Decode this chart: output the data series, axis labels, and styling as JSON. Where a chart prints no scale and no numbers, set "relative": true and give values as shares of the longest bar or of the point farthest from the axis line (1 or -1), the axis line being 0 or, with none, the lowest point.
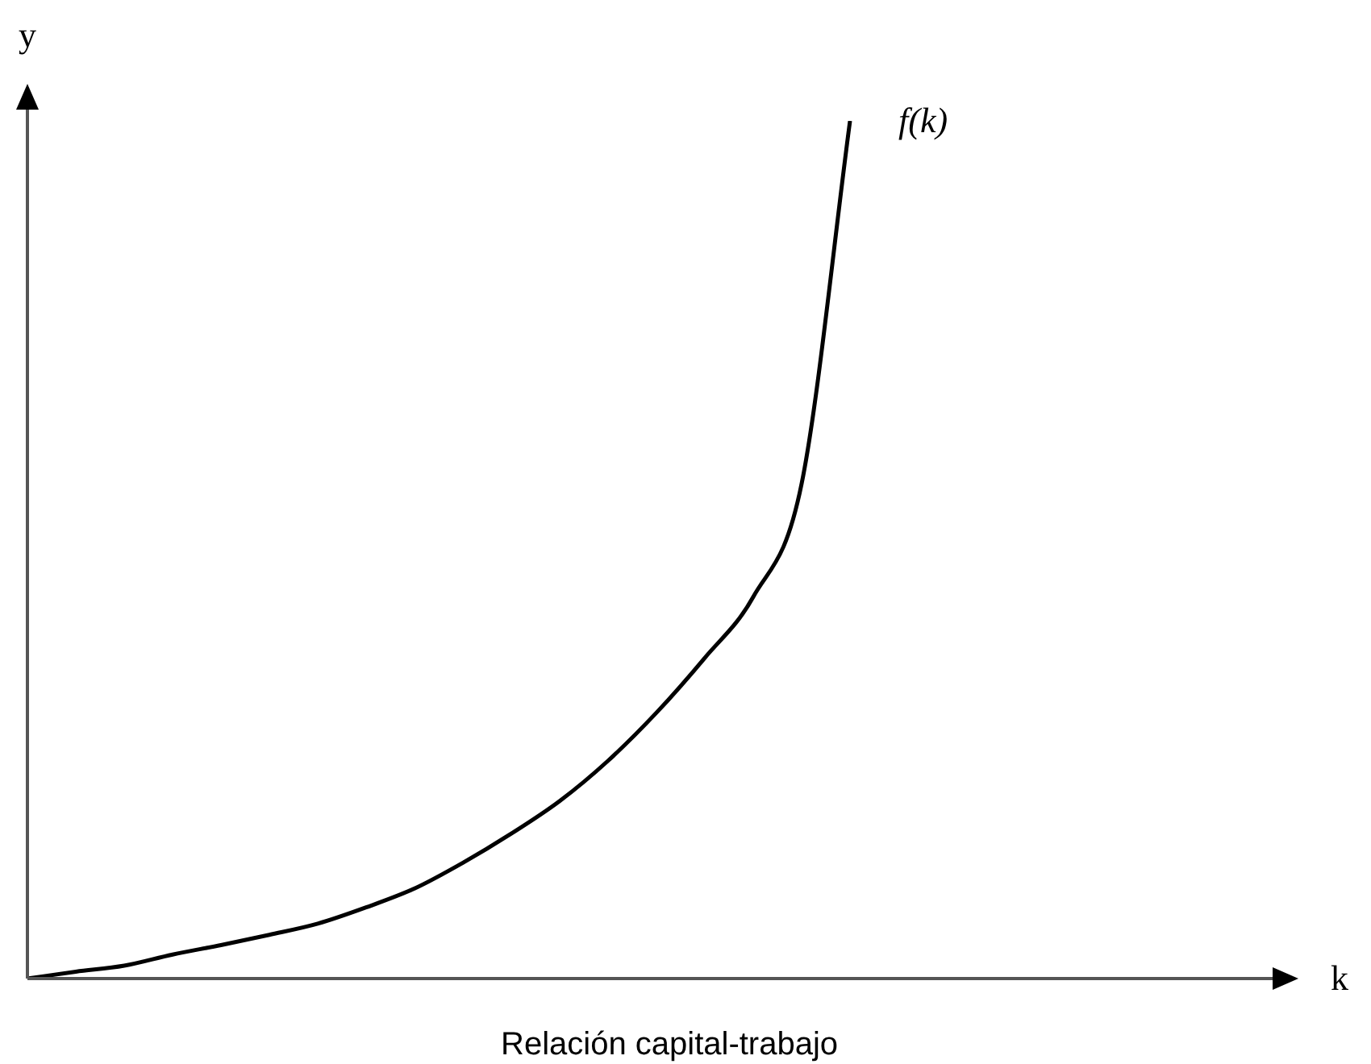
{
  "chart_data": {
    "type": "line",
    "xlabel": "k",
    "ylabel": "y",
    "annotations": [
      "Relación capital-trabajo"
    ],
    "relative": true,
    "categories": [
      null,
      null,
      null,
      null,
      null,
      null,
      null,
      null,
      null,
      null,
      null,
      null,
      null,
      null,
      null,
      null,
      null,
      null,
      null,
      null,
      null,
      null,
      null,
      null,
      null,
      null,
      null
    ],
    "series": [
      {
        "name": "f(k)",
        "color": "#000000",
        "values": [
          0,
          0.008,
          0.015,
          0.028,
          0.039,
          0.051,
          0.064,
          0.083,
          0.105,
          0.135,
          0.169,
          0.207,
          0.254,
          0.31,
          0.374,
          0.445,
          0.577,
          1,
          null,
          null,
          null,
          null,
          null,
          null,
          null,
          null,
          null
        ]
      }
    ]
  }
}
